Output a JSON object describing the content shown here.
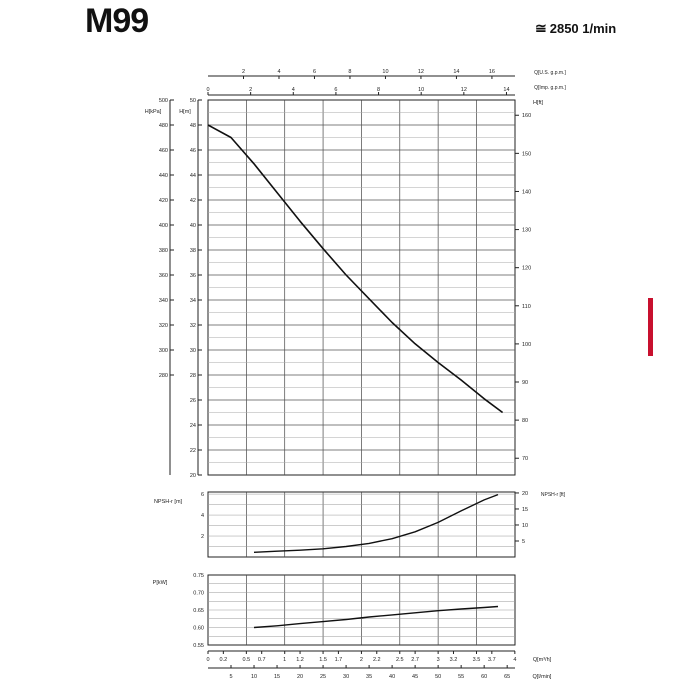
{
  "header": {
    "model": "M99",
    "speed": "2850 1/min",
    "approx_symbol": "≅"
  },
  "chart_data": [
    {
      "id": "head",
      "type": "line",
      "x_unit_labels": [
        "Q[U.S. g.p.m.]",
        "Q[Imp. g.p.m.]"
      ],
      "axes": {
        "top_usgpm": {
          "ticks": [
            2,
            4,
            6,
            8,
            10,
            12,
            14,
            16
          ],
          "range": [
            0,
            17.3
          ]
        },
        "top_impgpm": {
          "ticks": [
            0,
            2,
            4,
            6,
            8,
            10,
            12,
            14
          ],
          "range": [
            0,
            14.4
          ]
        },
        "y_left_kpa_label": "H[kPa]",
        "y_left_kpa": {
          "ticks": [
            280,
            300,
            320,
            340,
            360,
            380,
            400,
            420,
            440,
            460,
            480,
            500
          ],
          "range": [
            200,
            500
          ]
        },
        "y_left_m_label": "H[m]",
        "y_left_m": {
          "ticks": [
            20,
            22,
            24,
            26,
            28,
            30,
            32,
            34,
            36,
            38,
            40,
            42,
            44,
            46,
            48,
            50
          ],
          "range": [
            20,
            50
          ]
        },
        "y_right_ft_label": "H[ft]",
        "y_right_ft": {
          "ticks": [
            70,
            80,
            90,
            100,
            110,
            120,
            130,
            140,
            150,
            160
          ],
          "range": [
            65.6,
            164
          ]
        }
      },
      "series": [
        {
          "x_lmin": [
            0,
            5,
            10,
            15,
            20,
            25,
            30,
            35,
            40,
            45,
            50,
            55,
            60,
            64
          ],
          "y_m": [
            48.0,
            47.0,
            44.9,
            42.6,
            40.3,
            38.1,
            36.0,
            34.1,
            32.2,
            30.5,
            29.0,
            27.6,
            26.1,
            25.0
          ]
        }
      ],
      "grid": true
    },
    {
      "id": "npsh",
      "type": "line",
      "y_left_label": "NPSH-r [m]",
      "y_left": {
        "ticks": [
          2,
          4,
          6
        ],
        "range": [
          0,
          6.2
        ]
      },
      "y_right_label": "NPSH-r [ft]",
      "y_right": {
        "ticks": [
          5,
          10,
          15,
          20
        ],
        "range": [
          0,
          20.3
        ]
      },
      "series": [
        {
          "x_lmin": [
            10,
            15,
            20,
            25,
            30,
            35,
            40,
            45,
            50,
            55,
            60,
            63
          ],
          "y": [
            0.45,
            0.55,
            0.65,
            0.78,
            1.0,
            1.3,
            1.75,
            2.4,
            3.3,
            4.4,
            5.45,
            5.95
          ]
        }
      ],
      "grid": true
    },
    {
      "id": "power",
      "type": "line",
      "y_left_label": "P[kW]",
      "y_left": {
        "ticks": [
          0.55,
          0.6,
          0.65,
          0.7,
          0.75
        ],
        "tick_labels": [
          "0.55",
          "0.60",
          "0.65",
          "0.70",
          "0.75"
        ],
        "range": [
          0.55,
          0.75
        ]
      },
      "series": [
        {
          "x_lmin": [
            10,
            15,
            20,
            25,
            30,
            35,
            40,
            45,
            50,
            55,
            60,
            63
          ],
          "y": [
            0.6,
            0.605,
            0.611,
            0.617,
            0.623,
            0.63,
            0.636,
            0.642,
            0.648,
            0.653,
            0.657,
            0.66
          ]
        }
      ],
      "grid": true
    }
  ],
  "bottom_axes": {
    "m3h_label": "Q[m³/h]",
    "m3h_ticks": [
      "0",
      "0.2",
      "0.5",
      "0.7",
      "1",
      "1.2",
      "1.5",
      "1.7",
      "2",
      "2.2",
      "2.5",
      "2.7",
      "3",
      "3.2",
      "3.5",
      "3.7",
      "4"
    ],
    "m3h_values": [
      0,
      0.2,
      0.5,
      0.7,
      1,
      1.2,
      1.5,
      1.7,
      2,
      2.2,
      2.5,
      2.7,
      3,
      3.2,
      3.5,
      3.7,
      4
    ],
    "lmin_label": "Q[l/min]",
    "lmin_ticks": [
      "5",
      "10",
      "15",
      "20",
      "25",
      "30",
      "35",
      "40",
      "45",
      "50",
      "55",
      "60",
      "65"
    ],
    "lmin_values": [
      5,
      10,
      15,
      20,
      25,
      30,
      35,
      40,
      45,
      50,
      55,
      60,
      65
    ]
  }
}
